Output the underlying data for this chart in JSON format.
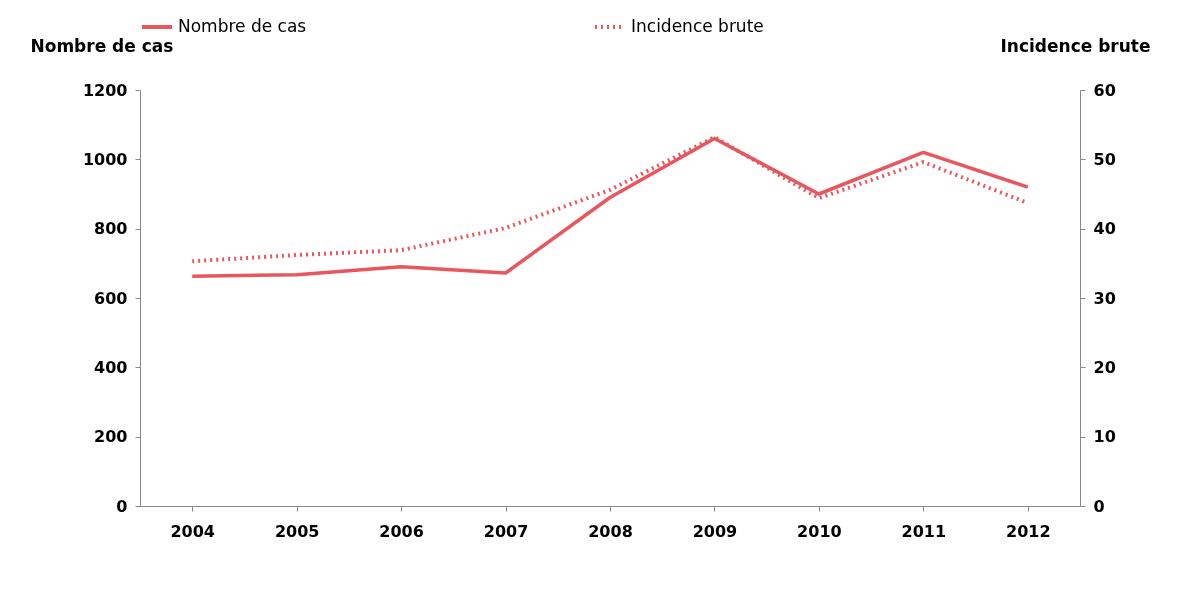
{
  "chart_data": {
    "type": "line",
    "ylabel": "Nombre de cas",
    "y2label": "Incidence brute",
    "categories": [
      "2004",
      "2005",
      "2006",
      "2007",
      "2008",
      "2009",
      "2010",
      "2011",
      "2012"
    ],
    "series": [
      {
        "name": "Nombre de cas",
        "color": "#e8575e",
        "line_style": "solid",
        "values": [
          663,
          667,
          690,
          672,
          890,
          1060,
          900,
          1020,
          920
        ]
      },
      {
        "name": "Incidence brute",
        "color": "#e8575e",
        "line_style": "dotted",
        "axis": "y2",
        "values": [
          35.3,
          36.2,
          36.9,
          40.1,
          45.6,
          53.2,
          44.4,
          49.6,
          43.7
        ]
      }
    ],
    "ylim": [
      0,
      1200
    ],
    "yticks": [
      0,
      200,
      400,
      600,
      800,
      1000,
      1200
    ],
    "y2lim": [
      0,
      60
    ],
    "y2ticks": [
      0,
      10,
      20,
      30,
      40,
      50,
      60
    ],
    "grid": false,
    "legend": "top",
    "marker": "none"
  }
}
